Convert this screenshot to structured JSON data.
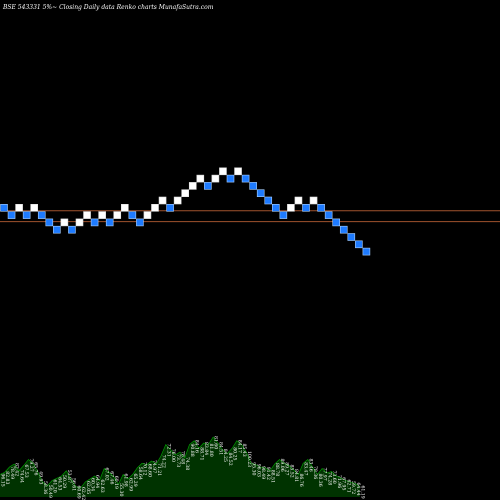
{
  "header": {
    "title": "BSE 543331 5%~   Closing Daily data  Renko  charts MunafaSutra.com"
  },
  "colors": {
    "background": "#000000",
    "up_brick": "#ffffff",
    "down_brick": "#1e7bff",
    "down_brick_border": "#a8d0ff",
    "reference_line": "#a0522d",
    "volume_fill": "#003300",
    "volume_line": "#00aa00"
  },
  "chart_data": {
    "type": "renko",
    "title": "BSE 543331 5%~   Closing Daily data  Renko  charts MunafaSutra.com",
    "bricks": [
      {
        "dir": "down",
        "level": 9
      },
      {
        "dir": "down",
        "level": 8
      },
      {
        "dir": "up",
        "level": 9
      },
      {
        "dir": "down",
        "level": 8
      },
      {
        "dir": "up",
        "level": 9
      },
      {
        "dir": "down",
        "level": 8
      },
      {
        "dir": "down",
        "level": 7
      },
      {
        "dir": "down",
        "level": 6
      },
      {
        "dir": "up",
        "level": 7
      },
      {
        "dir": "down",
        "level": 6
      },
      {
        "dir": "up",
        "level": 7
      },
      {
        "dir": "up",
        "level": 8
      },
      {
        "dir": "down",
        "level": 7
      },
      {
        "dir": "up",
        "level": 8
      },
      {
        "dir": "down",
        "level": 7
      },
      {
        "dir": "up",
        "level": 8
      },
      {
        "dir": "up",
        "level": 9
      },
      {
        "dir": "down",
        "level": 8
      },
      {
        "dir": "down",
        "level": 7
      },
      {
        "dir": "up",
        "level": 8
      },
      {
        "dir": "up",
        "level": 9
      },
      {
        "dir": "up",
        "level": 10
      },
      {
        "dir": "down",
        "level": 9
      },
      {
        "dir": "up",
        "level": 10
      },
      {
        "dir": "up",
        "level": 11
      },
      {
        "dir": "up",
        "level": 12
      },
      {
        "dir": "up",
        "level": 13
      },
      {
        "dir": "down",
        "level": 12
      },
      {
        "dir": "up",
        "level": 13
      },
      {
        "dir": "up",
        "level": 14
      },
      {
        "dir": "down",
        "level": 13
      },
      {
        "dir": "up",
        "level": 14
      },
      {
        "dir": "down",
        "level": 13
      },
      {
        "dir": "down",
        "level": 12
      },
      {
        "dir": "down",
        "level": 11
      },
      {
        "dir": "down",
        "level": 10
      },
      {
        "dir": "down",
        "level": 9
      },
      {
        "dir": "down",
        "level": 8
      },
      {
        "dir": "up",
        "level": 9
      },
      {
        "dir": "up",
        "level": 10
      },
      {
        "dir": "down",
        "level": 9
      },
      {
        "dir": "up",
        "level": 10
      },
      {
        "dir": "down",
        "level": 9
      },
      {
        "dir": "down",
        "level": 8
      },
      {
        "dir": "down",
        "level": 7
      },
      {
        "dir": "down",
        "level": 6
      },
      {
        "dir": "down",
        "level": 5
      },
      {
        "dir": "down",
        "level": 4
      },
      {
        "dir": "down",
        "level": 3
      }
    ],
    "reference_lines": [
      8.6,
      7.1
    ],
    "volume": [
      {
        "v": 30,
        "label": "96.15"
      },
      {
        "v": 33,
        "label": "82.83"
      },
      {
        "v": 40,
        "label": "78.49"
      },
      {
        "v": 44,
        "label": "82.42"
      },
      {
        "v": 35,
        "label": "74.64"
      },
      {
        "v": 42,
        "label": "67.53"
      },
      {
        "v": 50,
        "label": "79.27"
      },
      {
        "v": 45,
        "label": "65.76"
      },
      {
        "v": 33,
        "label": "49.93"
      },
      {
        "v": 20,
        "label": "58.36"
      },
      {
        "v": 15,
        "label": "50.49"
      },
      {
        "v": 22,
        "label": "61.20"
      },
      {
        "v": 25,
        "label": "64.53"
      },
      {
        "v": 28,
        "label": "50.29"
      },
      {
        "v": 35,
        "label": "53.87"
      },
      {
        "v": 24,
        "label": "56.61"
      },
      {
        "v": 14,
        "label": "60.69"
      },
      {
        "v": 12,
        "label": "62.42"
      },
      {
        "v": 20,
        "label": "62.05"
      },
      {
        "v": 24,
        "label": "60.34"
      },
      {
        "v": 28,
        "label": "64.94"
      },
      {
        "v": 22,
        "label": "62.63"
      },
      {
        "v": 38,
        "label": "67.02"
      },
      {
        "v": 33,
        "label": "67.46"
      },
      {
        "v": 27,
        "label": "60.19"
      },
      {
        "v": 17,
        "label": "55.30"
      },
      {
        "v": 30,
        "label": "61.98"
      },
      {
        "v": 24,
        "label": "62.99"
      },
      {
        "v": 30,
        "label": "65.29"
      },
      {
        "v": 39,
        "label": "58.64"
      },
      {
        "v": 45,
        "label": "70.12"
      },
      {
        "v": 43,
        "label": "68.60"
      },
      {
        "v": 48,
        "label": "74.97"
      },
      {
        "v": 44,
        "label": "71.21"
      },
      {
        "v": 55,
        "label": "74.22"
      },
      {
        "v": 70,
        "label": "72.31"
      },
      {
        "v": 63,
        "label": "76.00"
      },
      {
        "v": 56,
        "label": "73.73"
      },
      {
        "v": 60,
        "label": "78.48"
      },
      {
        "v": 52,
        "label": "74.38"
      },
      {
        "v": 70,
        "label": "90.88"
      },
      {
        "v": 75,
        "label": "84.16"
      },
      {
        "v": 65,
        "label": "88.71"
      },
      {
        "v": 72,
        "label": "83.84"
      },
      {
        "v": 70,
        "label": "81.80"
      },
      {
        "v": 80,
        "label": "81.60"
      },
      {
        "v": 72,
        "label": "84.51"
      },
      {
        "v": 63,
        "label": "84.25"
      },
      {
        "v": 58,
        "label": "84.52"
      },
      {
        "v": 65,
        "label": "80.25"
      },
      {
        "v": 75,
        "label": "84.17"
      },
      {
        "v": 70,
        "label": "85.43"
      },
      {
        "v": 60,
        "label": "100.23"
      },
      {
        "v": 45,
        "label": "95.30"
      },
      {
        "v": 43,
        "label": "96.03"
      },
      {
        "v": 40,
        "label": "98.49"
      },
      {
        "v": 39,
        "label": "91.42"
      },
      {
        "v": 35,
        "label": "88.51"
      },
      {
        "v": 44,
        "label": "88.78"
      },
      {
        "v": 50,
        "label": "89.06"
      },
      {
        "v": 45,
        "label": "89.27"
      },
      {
        "v": 42,
        "label": "85.52"
      },
      {
        "v": 36,
        "label": "84.81"
      },
      {
        "v": 30,
        "label": "86.76"
      },
      {
        "v": 45,
        "label": "83.47"
      },
      {
        "v": 50,
        "label": "83.46"
      },
      {
        "v": 40,
        "label": "78.36"
      },
      {
        "v": 30,
        "label": "80.36"
      },
      {
        "v": 38,
        "label": "77.97"
      },
      {
        "v": 32,
        "label": "74.28"
      },
      {
        "v": 34,
        "label": "73.60"
      },
      {
        "v": 28,
        "label": "71.96"
      },
      {
        "v": 25,
        "label": "67.95"
      },
      {
        "v": 22,
        "label": "62.71"
      },
      {
        "v": 20,
        "label": "59.72"
      },
      {
        "v": 18,
        "label": "64.44"
      },
      {
        "v": 14,
        "label": "61.19"
      }
    ]
  }
}
